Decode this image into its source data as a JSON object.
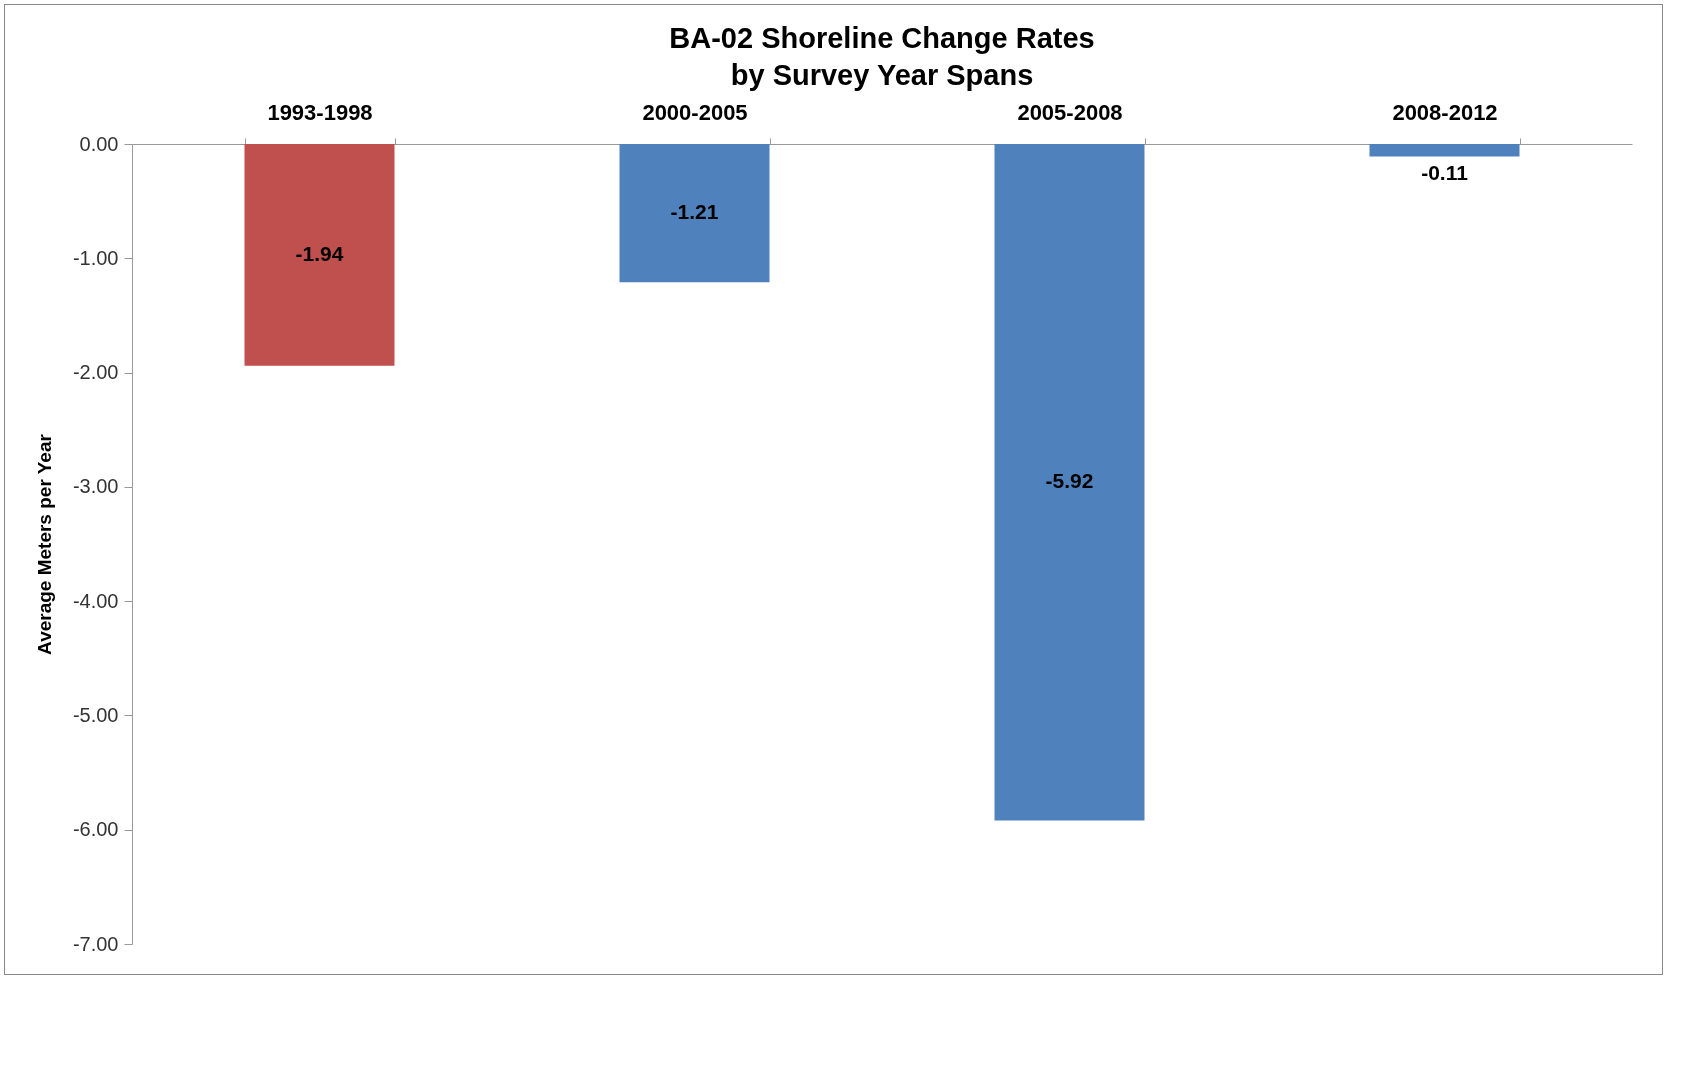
{
  "chart_data": {
    "type": "bar",
    "title": "BA-02 Shoreline Change Rates",
    "subtitle": "by Survey Year Spans",
    "ylabel": "Average Meters per Year",
    "categories": [
      "1993-1998",
      "2000-2005",
      "2005-2008",
      "2008-2012"
    ],
    "values": [
      -1.94,
      -1.21,
      -5.92,
      -0.11
    ],
    "colors": [
      "#c0504d",
      "#4f81bd",
      "#4f81bd",
      "#4f81bd"
    ],
    "ylim": [
      -7,
      0
    ],
    "yticks": [
      {
        "value": 0,
        "label": "0.00"
      },
      {
        "value": -1,
        "label": "-1.00"
      },
      {
        "value": -2,
        "label": "-2.00"
      },
      {
        "value": -3,
        "label": "-3.00"
      },
      {
        "value": -4,
        "label": "-4.00"
      },
      {
        "value": -5,
        "label": "-5.00"
      },
      {
        "value": -6,
        "label": "-6.00"
      },
      {
        "value": -7,
        "label": "-7.00"
      }
    ],
    "data_labels": true,
    "grid": false
  }
}
